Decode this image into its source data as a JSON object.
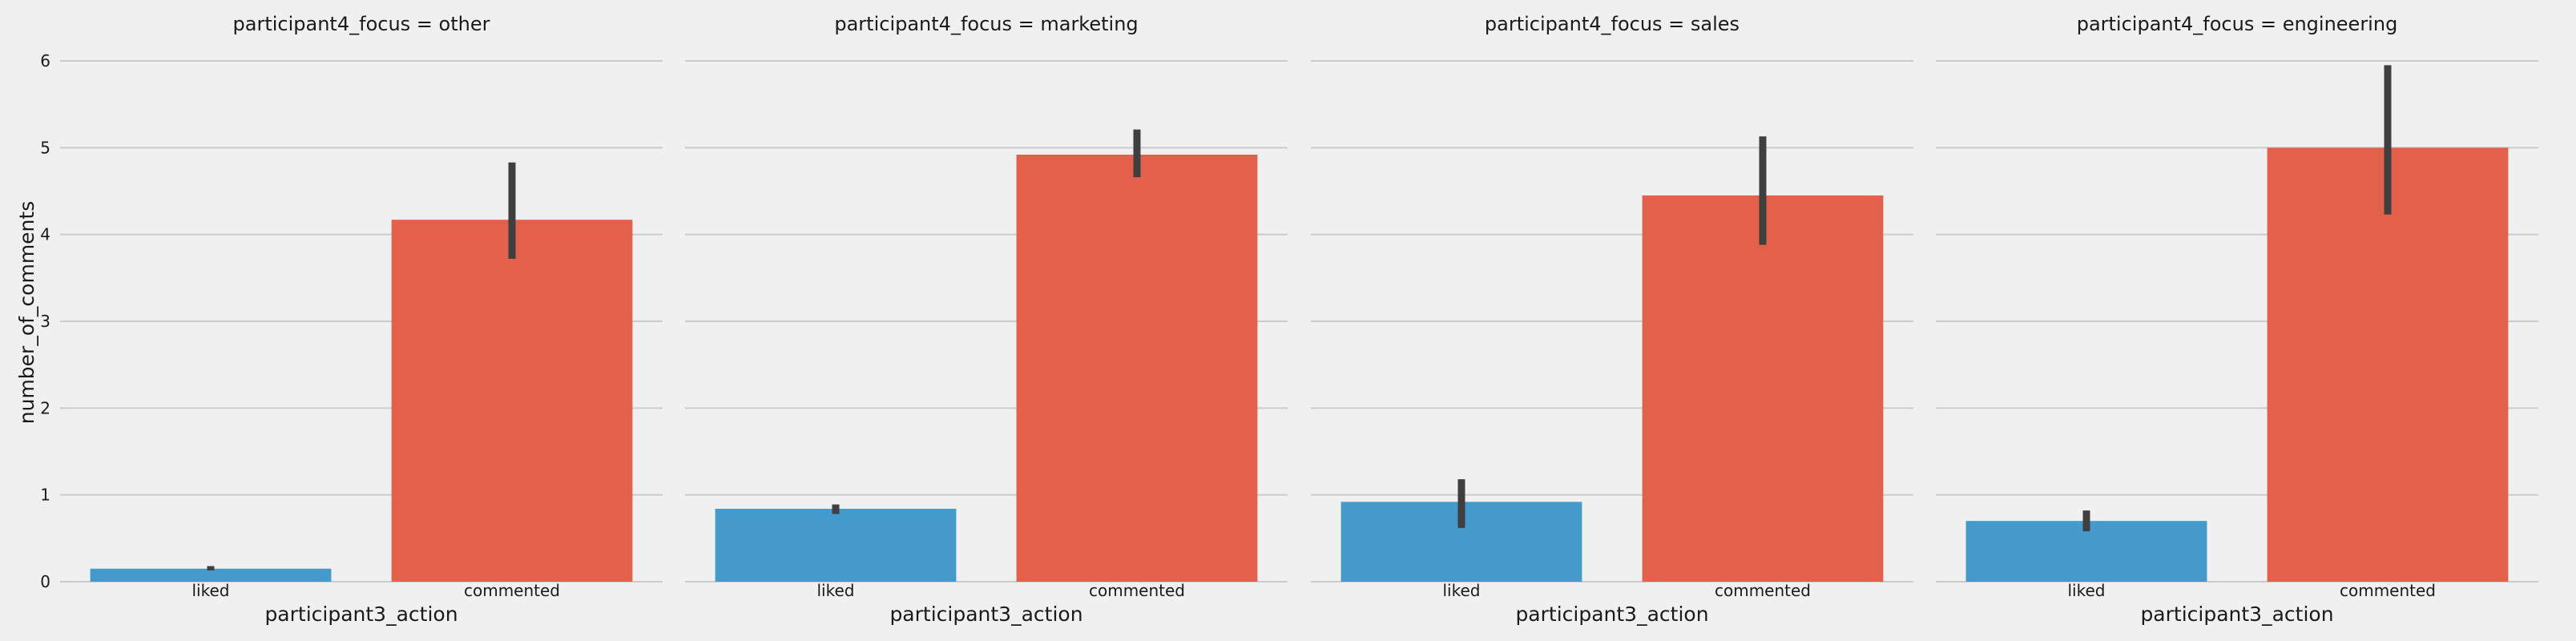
{
  "colors": {
    "background": "#f0f0f0",
    "grid": "#cbcbcb",
    "liked": "#449bcb",
    "commented": "#e3604a",
    "error_bar": "#3f3f3f"
  },
  "chart_data": {
    "type": "bar",
    "layout": "faceted",
    "ylabel": "number_of_comments",
    "xlabel": "participant3_action",
    "ylim": [
      0,
      6
    ],
    "yticks": [
      "0",
      "1",
      "2",
      "3",
      "4",
      "5",
      "6"
    ],
    "grid": true,
    "categories": [
      "liked",
      "commented"
    ],
    "facets": [
      {
        "title": "participant4_focus = other",
        "values": [
          0.15,
          4.17
        ],
        "ci": [
          [
            0.13,
            0.18
          ],
          [
            3.72,
            4.83
          ]
        ]
      },
      {
        "title": "participant4_focus = marketing",
        "values": [
          0.84,
          4.92
        ],
        "ci": [
          [
            0.78,
            0.89
          ],
          [
            4.66,
            5.21
          ]
        ]
      },
      {
        "title": "participant4_focus = sales",
        "values": [
          0.92,
          4.45
        ],
        "ci": [
          [
            0.62,
            1.18
          ],
          [
            3.88,
            5.13
          ]
        ]
      },
      {
        "title": "participant4_focus = engineering",
        "values": [
          0.7,
          5.0
        ],
        "ci": [
          [
            0.58,
            0.82
          ],
          [
            4.23,
            5.95
          ]
        ]
      }
    ]
  }
}
